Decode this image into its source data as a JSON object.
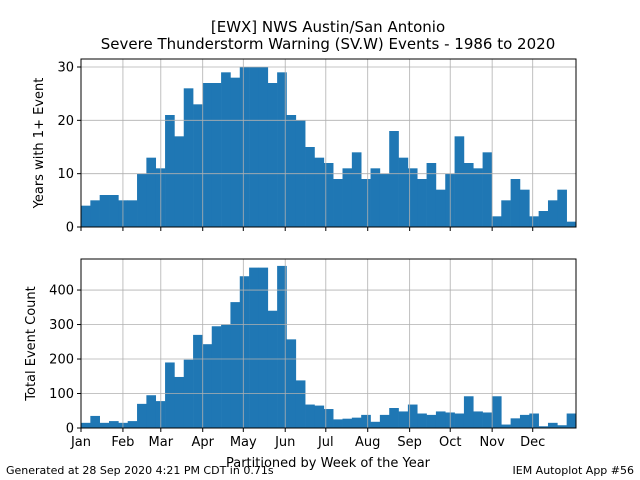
{
  "chart_data": [
    {
      "type": "bar",
      "title": "[EWX] NWS Austin/San Antonio",
      "subtitle": "Severe Thunderstorm Warning (SV.W) Events - 1986 to 2020",
      "ylabel": "Years with 1+ Event",
      "xlabel": "",
      "ylim": [
        0,
        31.5
      ],
      "yticks": [
        0,
        10,
        20,
        30
      ],
      "grid": true,
      "bar_color": "#1f77b4",
      "values": [
        4,
        5,
        6,
        6,
        5,
        5,
        10,
        13,
        11,
        21,
        17,
        26,
        23,
        27,
        27,
        29,
        28,
        30,
        30,
        30,
        27,
        29,
        21,
        20,
        15,
        13,
        12,
        9,
        11,
        14,
        9,
        11,
        10,
        18,
        13,
        11,
        9,
        12,
        7,
        10,
        17,
        12,
        11,
        14,
        2,
        5,
        9,
        7,
        2,
        3,
        5,
        7,
        1
      ]
    },
    {
      "type": "bar",
      "ylabel": "Total Event Count",
      "xlabel": "Partitioned by Week of the Year",
      "ylim": [
        0,
        490
      ],
      "yticks": [
        0,
        100,
        200,
        300,
        400
      ],
      "grid": true,
      "bar_color": "#1f77b4",
      "values": [
        15,
        35,
        15,
        20,
        15,
        20,
        70,
        95,
        78,
        190,
        148,
        198,
        270,
        243,
        295,
        300,
        365,
        440,
        465,
        465,
        340,
        470,
        257,
        138,
        68,
        65,
        55,
        25,
        27,
        30,
        38,
        18,
        38,
        58,
        48,
        68,
        42,
        38,
        48,
        45,
        42,
        92,
        48,
        45,
        92,
        10,
        28,
        38,
        42,
        5,
        15,
        8,
        42
      ],
      "month_labels": [
        "Jan",
        "Feb",
        "Mar",
        "Apr",
        "May",
        "Jun",
        "Jul",
        "Aug",
        "Sep",
        "Oct",
        "Nov",
        "Dec"
      ]
    }
  ],
  "footer": {
    "left": "Generated at 28 Sep 2020 4:21 PM CDT in 0.71s",
    "right": "IEM Autoplot App #56"
  }
}
